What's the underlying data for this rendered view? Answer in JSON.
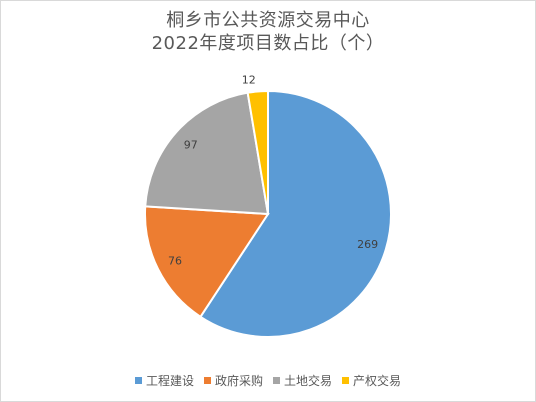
{
  "chart_data": {
    "type": "pie",
    "title_line_1": "桐乡市公共资源交易中心",
    "title_line_2": "2022年度项目数占比（个）",
    "categories": [
      "工程建设",
      "政府采购",
      "土地交易",
      "产权交易"
    ],
    "values": [
      269,
      76,
      97,
      12
    ],
    "colors": [
      "#5b9bd5",
      "#ed7d31",
      "#a5a5a5",
      "#ffc000"
    ],
    "legend_position": "bottom",
    "data_labels": [
      "269",
      "76",
      "97",
      "12"
    ]
  }
}
